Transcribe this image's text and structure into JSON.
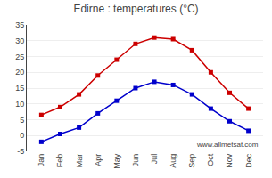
{
  "chart_data": {
    "type": "line",
    "title": "Edirne : temperatures (°C)",
    "categories": [
      "Jan",
      "Feb",
      "Mar",
      "Apr",
      "May",
      "Jun",
      "Jul",
      "Aug",
      "Sep",
      "Oct",
      "Nov",
      "Dec"
    ],
    "series": [
      {
        "color": "#cc0000",
        "marker": "square",
        "line_style": "solid",
        "values": [
          6.5,
          9.0,
          13.0,
          19.0,
          24.0,
          29.0,
          31.0,
          30.5,
          27.0,
          20.0,
          13.5,
          8.5
        ]
      },
      {
        "color": "#0000cc",
        "marker": "square",
        "line_style": "solid",
        "values": [
          -2.0,
          0.5,
          2.5,
          7.0,
          11.0,
          15.0,
          17.0,
          16.0,
          13.0,
          8.5,
          4.5,
          1.5
        ]
      }
    ],
    "ylim": [
      -5,
      35
    ],
    "yticks": [
      -5,
      0,
      5,
      10,
      15,
      20,
      25,
      30,
      35
    ],
    "grid": true,
    "annotations": [
      "www.allmetsat.com"
    ]
  }
}
